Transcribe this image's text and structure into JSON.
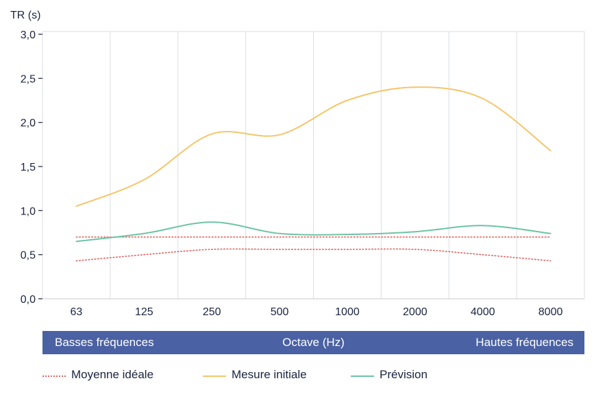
{
  "chart_data": {
    "type": "line",
    "ylabel": "TR (s)",
    "categories": [
      "63",
      "125",
      "250",
      "500",
      "1000",
      "2000",
      "4000",
      "8000"
    ],
    "ylim": [
      0,
      3
    ],
    "yticks": [
      "0,0",
      "0,5",
      "1,0",
      "1,5",
      "2,0",
      "2,5",
      "3,0"
    ],
    "grid": true,
    "series": [
      {
        "name": "Moyenne idéale",
        "style": "dotted",
        "color": "#e06060",
        "upper": [
          0.7,
          0.7,
          0.7,
          0.7,
          0.7,
          0.7,
          0.7,
          0.7
        ],
        "lower": [
          0.43,
          0.5,
          0.56,
          0.56,
          0.56,
          0.56,
          0.5,
          0.43
        ]
      },
      {
        "name": "Mesure initiale",
        "style": "solid",
        "color": "#f5c56a",
        "values": [
          1.05,
          1.35,
          1.87,
          1.86,
          2.25,
          2.4,
          2.27,
          1.68
        ]
      },
      {
        "name": "Prévision",
        "style": "solid",
        "color": "#6cc4a4",
        "values": [
          0.65,
          0.74,
          0.87,
          0.74,
          0.73,
          0.76,
          0.83,
          0.74
        ]
      }
    ]
  },
  "band": {
    "left": "Basses fréquences",
    "center": "Octave (Hz)",
    "right": "Hautes fréquences",
    "color": "#4a61a3"
  }
}
